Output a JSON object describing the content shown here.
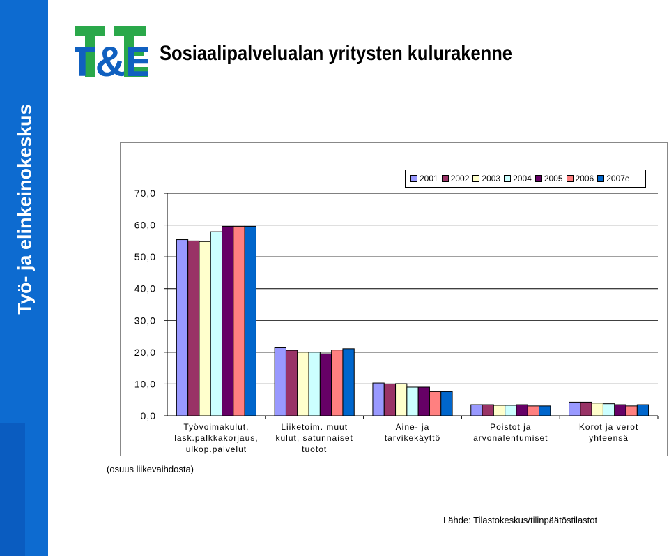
{
  "sidebar": {
    "text": "Työ- ja elinkeinokeskus"
  },
  "logo": {
    "text": "T&E"
  },
  "page": {
    "title": "Sosiaalipalvelualan yritysten kulurakenne"
  },
  "y_note": "(osuus liikevaihdosta)",
  "source": "Lähde: Tilastokeskus/tilinpäätöstilastot",
  "colors": {
    "sidebar": "#0d6bd0",
    "logo_green": "#2aa84a",
    "logo_blue": "#1060c0"
  },
  "chart_data": {
    "type": "bar",
    "categories": [
      [
        "Työvoimakulut,",
        "lask.palkkakorjaus,",
        "ulkop.palvelut"
      ],
      [
        "Liiketoim. muut",
        "kulut, satunnaiset",
        "tuotot"
      ],
      [
        "Aine- ja",
        "tarvikekäyttö"
      ],
      [
        "Poistot ja",
        "arvonalentumiset"
      ],
      [
        "Korot ja verot",
        "yhteensä"
      ]
    ],
    "series": [
      {
        "name": "2001",
        "color": "#9999ff",
        "values": [
          55.4,
          21.4,
          10.3,
          3.5,
          4.3
        ]
      },
      {
        "name": "2002",
        "color": "#993366",
        "values": [
          55.0,
          20.6,
          10.0,
          3.5,
          4.3
        ]
      },
      {
        "name": "2003",
        "color": "#ffffcc",
        "values": [
          54.8,
          20.0,
          10.1,
          3.3,
          4.0
        ]
      },
      {
        "name": "2004",
        "color": "#ccffff",
        "values": [
          57.9,
          20.0,
          9.0,
          3.3,
          3.8
        ]
      },
      {
        "name": "2005",
        "color": "#660066",
        "values": [
          59.6,
          19.5,
          9.0,
          3.5,
          3.5
        ]
      },
      {
        "name": "2006",
        "color": "#ff8080",
        "values": [
          59.6,
          20.7,
          7.6,
          3.1,
          3.1
        ]
      },
      {
        "name": "2007e",
        "color": "#0066cc",
        "values": [
          59.6,
          21.1,
          7.6,
          3.1,
          3.5
        ]
      }
    ],
    "y_ticks": [
      "0,0",
      "10,0",
      "20,0",
      "30,0",
      "40,0",
      "50,0",
      "60,0",
      "70,0"
    ],
    "ylim": [
      0,
      70
    ],
    "grid": true,
    "legend_position": "top-right"
  }
}
